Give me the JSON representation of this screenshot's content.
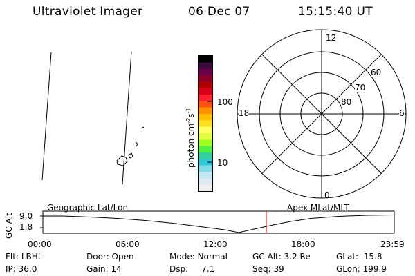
{
  "header": {
    "instrument": "Ultraviolet Imager",
    "date": "06 Dec 07",
    "time": "15:15:40 UT"
  },
  "colorbar": {
    "label_main": "photon cm",
    "label_sup1": "-2",
    "label_s": "s",
    "label_sup2": "-1",
    "tick_100": "100",
    "tick_10": "10",
    "colors": [
      "#000000",
      "#3a0a3a",
      "#6a0048",
      "#8c0028",
      "#b00000",
      "#d80018",
      "#ff2030",
      "#ff5010",
      "#ff9000",
      "#ffc000",
      "#ffe020",
      "#ffff60",
      "#e0ff40",
      "#a0ff20",
      "#50f040",
      "#30d0a0",
      "#30c8d8",
      "#80dce8",
      "#bfe8f0",
      "#dde8ef",
      "#eeeeee"
    ]
  },
  "polar_plot": {
    "lat_labels": [
      "80",
      "70",
      "60"
    ],
    "mlt_labels": {
      "top": "12",
      "bottom": "0",
      "left": "18",
      "right": "6"
    }
  },
  "altitude_panel": {
    "ylabel": "GC Alt",
    "y_ticks": [
      "9.0",
      "1.8"
    ],
    "left_caption": "Geographic Lat/Lon",
    "right_caption": "Apex MLat/MLT",
    "x_ticks": [
      "00:00",
      "06:00",
      "12:00",
      "18:00",
      "23:59"
    ],
    "marker_color": "#e00000"
  },
  "status": {
    "row1": [
      {
        "label": "Flt:",
        "value": "LBHL"
      },
      {
        "label": "Door:",
        "value": "Open"
      },
      {
        "label": "Mode:",
        "value": "Normal"
      },
      {
        "label": "GC Alt:",
        "value": "3.2 Re"
      },
      {
        "label": "GLat:",
        "value": "15.8"
      }
    ],
    "row2": [
      {
        "label": "IP:",
        "value": "36.0"
      },
      {
        "label": "Gain:",
        "value": "14"
      },
      {
        "label": "Dsp:",
        "value": "7.1"
      },
      {
        "label": "Seq:",
        "value": "39"
      },
      {
        "label": "GLon:",
        "value": "199.9"
      }
    ]
  }
}
